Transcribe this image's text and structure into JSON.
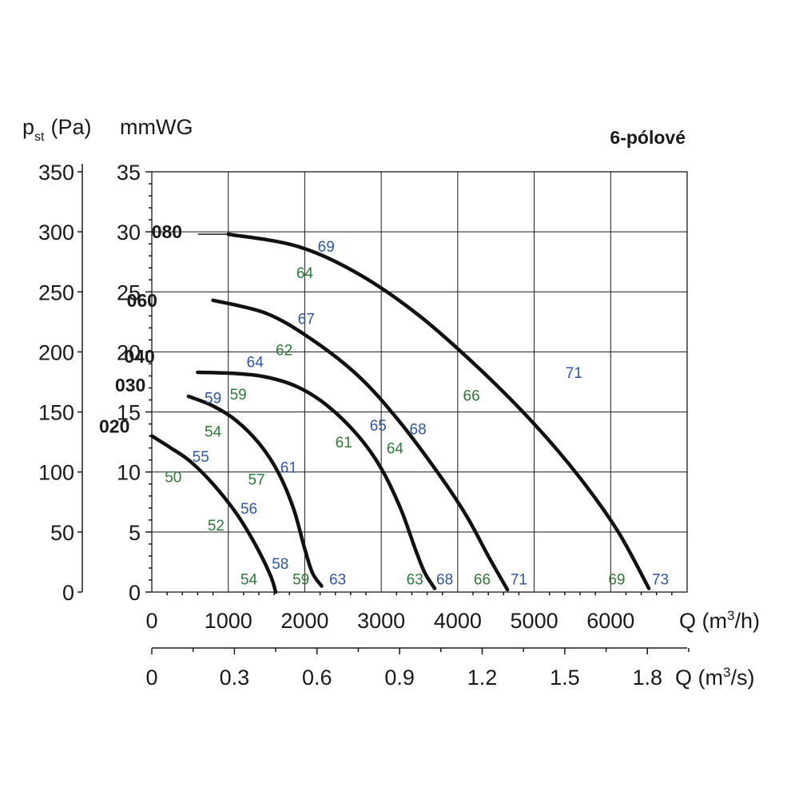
{
  "chart_data": {
    "type": "line",
    "title": "6-pólové",
    "y_label_pa_main": "p",
    "y_label_pa_sub": "st",
    "y_label_pa_unit": "(Pa)",
    "y_label_mmwg": "mmWG",
    "x_label_m3h_main": "Q (m",
    "x_label_m3h_sup": "3",
    "x_label_m3h_end": "/h)",
    "x_label_m3s_main": "Q (m",
    "x_label_m3s_sup": "3",
    "x_label_m3s_end": "/s)",
    "xlim": [
      0,
      7000
    ],
    "ylim": [
      0,
      35
    ],
    "y_ticks_pa": [
      "0",
      "50",
      "100",
      "150",
      "200",
      "250",
      "300",
      "350"
    ],
    "y_ticks_mmwg": [
      "0",
      "5",
      "10",
      "15",
      "20",
      "25",
      "30",
      "35"
    ],
    "x_ticks_m3h": [
      "0",
      "1000",
      "2000",
      "3000",
      "4000",
      "5000",
      "6000"
    ],
    "x_ticks_m3s": [
      "0",
      "0.3",
      "0.6",
      "0.9",
      "1.2",
      "1.5",
      "1.8"
    ],
    "grid": true,
    "colors": {
      "blue": "#2e57a4",
      "green": "#2d7a3a",
      "curve": "#111111"
    },
    "series": [
      {
        "name": "020",
        "points": [
          [
            0,
            13.0
          ],
          [
            250,
            12.0
          ],
          [
            500,
            10.9
          ],
          [
            800,
            9.0
          ],
          [
            1100,
            6.6
          ],
          [
            1350,
            4.0
          ],
          [
            1550,
            1.4
          ],
          [
            1620,
            0
          ]
        ],
        "sound_labels": [
          {
            "text": "55",
            "color": "blue",
            "x": 640,
            "y": 11.3
          },
          {
            "text": "50",
            "color": "green",
            "x": 280,
            "y": 9.6
          },
          {
            "text": "56",
            "color": "blue",
            "x": 1270,
            "y": 7.0
          },
          {
            "text": "52",
            "color": "green",
            "x": 840,
            "y": 5.6
          },
          {
            "text": "58",
            "color": "blue",
            "x": 1680,
            "y": 2.4
          },
          {
            "text": "54",
            "color": "green",
            "x": 1270,
            "y": 1.1
          }
        ]
      },
      {
        "name": "030",
        "points": [
          [
            480,
            16.3
          ],
          [
            800,
            15.5
          ],
          [
            1100,
            14.3
          ],
          [
            1400,
            12.4
          ],
          [
            1650,
            10.0
          ],
          [
            1850,
            7.0
          ],
          [
            2000,
            3.6
          ],
          [
            2100,
            1.6
          ],
          [
            2220,
            0.5
          ]
        ],
        "sound_labels": [
          {
            "text": "59",
            "color": "blue",
            "x": 800,
            "y": 16.2
          },
          {
            "text": "59",
            "color": "green",
            "x": 1130,
            "y": 16.5
          },
          {
            "text": "54",
            "color": "green",
            "x": 800,
            "y": 13.4
          },
          {
            "text": "61",
            "color": "blue",
            "x": 1790,
            "y": 10.4
          },
          {
            "text": "57",
            "color": "green",
            "x": 1370,
            "y": 9.4
          },
          {
            "text": "59",
            "color": "green",
            "x": 1950,
            "y": 1.1
          },
          {
            "text": "63",
            "color": "blue",
            "x": 2430,
            "y": 1.1
          }
        ]
      },
      {
        "name": "040",
        "points": [
          [
            600,
            18.3
          ],
          [
            1100,
            18.2
          ],
          [
            1500,
            17.9
          ],
          [
            1900,
            17.1
          ],
          [
            2300,
            15.5
          ],
          [
            2700,
            13.0
          ],
          [
            3000,
            10.3
          ],
          [
            3250,
            7.0
          ],
          [
            3450,
            3.5
          ],
          [
            3570,
            1.6
          ],
          [
            3700,
            0.3
          ]
        ],
        "sound_labels": [
          {
            "text": "64",
            "color": "blue",
            "x": 1350,
            "y": 19.2
          },
          {
            "text": "62",
            "color": "green",
            "x": 1730,
            "y": 20.2
          },
          {
            "text": "65",
            "color": "blue",
            "x": 2960,
            "y": 13.9
          },
          {
            "text": "61",
            "color": "green",
            "x": 2510,
            "y": 12.5
          },
          {
            "text": "63",
            "color": "green",
            "x": 3440,
            "y": 1.1
          },
          {
            "text": "68",
            "color": "blue",
            "x": 3830,
            "y": 1.1
          }
        ]
      },
      {
        "name": "060",
        "points": [
          [
            800,
            24.3
          ],
          [
            1500,
            23.2
          ],
          [
            2100,
            21.0
          ],
          [
            2700,
            18.0
          ],
          [
            3200,
            14.5
          ],
          [
            3700,
            10.3
          ],
          [
            4100,
            6.5
          ],
          [
            4400,
            3.0
          ],
          [
            4650,
            0.2
          ]
        ],
        "sound_labels": [
          {
            "text": "67",
            "color": "blue",
            "x": 2020,
            "y": 22.8
          },
          {
            "text": "68",
            "color": "blue",
            "x": 3480,
            "y": 13.6
          },
          {
            "text": "64",
            "color": "green",
            "x": 3180,
            "y": 12.0
          },
          {
            "text": "66",
            "color": "green",
            "x": 4320,
            "y": 1.1
          },
          {
            "text": "71",
            "color": "blue",
            "x": 4800,
            "y": 1.1
          }
        ]
      },
      {
        "name": "080",
        "points": [
          [
            1000,
            29.8
          ],
          [
            1900,
            28.8
          ],
          [
            2700,
            26.5
          ],
          [
            3500,
            23.0
          ],
          [
            4300,
            18.5
          ],
          [
            5000,
            14.0
          ],
          [
            5600,
            9.5
          ],
          [
            6100,
            5.0
          ],
          [
            6500,
            0.3
          ]
        ],
        "sound_labels": [
          {
            "text": "69",
            "color": "blue",
            "x": 2280,
            "y": 28.8
          },
          {
            "text": "64",
            "color": "green",
            "x": 2000,
            "y": 26.6
          },
          {
            "text": "71",
            "color": "blue",
            "x": 5520,
            "y": 18.3
          },
          {
            "text": "66",
            "color": "green",
            "x": 4180,
            "y": 16.4
          },
          {
            "text": "69",
            "color": "green",
            "x": 6080,
            "y": 1.1
          },
          {
            "text": "73",
            "color": "blue",
            "x": 6650,
            "y": 1.1
          }
        ]
      }
    ]
  }
}
